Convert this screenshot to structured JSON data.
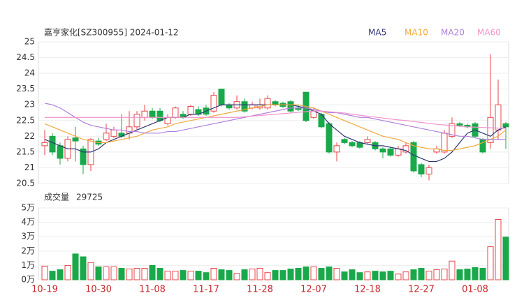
{
  "chart_data": [
    {
      "type": "candlestick",
      "title": "嘉亨家化[SZ300955] 2024-01-12",
      "categories": [
        "10-19",
        null,
        null,
        null,
        null,
        null,
        null,
        "10-30",
        null,
        null,
        null,
        null,
        null,
        null,
        "11-08",
        null,
        null,
        null,
        null,
        null,
        null,
        "11-17",
        null,
        null,
        null,
        null,
        null,
        null,
        "11-28",
        null,
        null,
        null,
        null,
        null,
        null,
        "12-07",
        null,
        null,
        null,
        null,
        null,
        null,
        "12-18",
        null,
        null,
        null,
        null,
        null,
        null,
        "12-27",
        null,
        null,
        null,
        null,
        null,
        null,
        "01-08",
        null,
        null,
        null,
        null
      ],
      "open": [
        21.7,
        22.0,
        21.7,
        21.3,
        21.95,
        21.6,
        21.1,
        21.85,
        21.9,
        22.0,
        22.1,
        22.1,
        22.3,
        22.6,
        22.8,
        22.8,
        22.4,
        22.6,
        22.7,
        22.7,
        22.85,
        22.9,
        22.8,
        23.5,
        23.0,
        22.9,
        23.1,
        22.9,
        22.9,
        22.9,
        23.1,
        23.05,
        23.1,
        22.9,
        23.4,
        22.6,
        22.7,
        22.4,
        21.5,
        21.9,
        21.8,
        21.8,
        21.8,
        21.8,
        21.6,
        21.6,
        21.4,
        21.5,
        21.8,
        21.1,
        20.8,
        21.5,
        21.5,
        22.0,
        22.4,
        22.35,
        22.4,
        21.9,
        21.8,
        22.2,
        22.4
      ],
      "high": [
        22.2,
        22.1,
        21.8,
        22.0,
        22.3,
        21.7,
        21.95,
        21.95,
        22.4,
        22.3,
        22.7,
        22.8,
        22.8,
        23.0,
        22.9,
        22.9,
        22.7,
        22.95,
        22.8,
        23.0,
        22.95,
        23.0,
        23.4,
        23.5,
        23.05,
        23.3,
        23.2,
        23.1,
        23.2,
        23.3,
        23.15,
        23.1,
        23.15,
        23.0,
        23.4,
        22.9,
        22.75,
        22.45,
        21.8,
        21.95,
        21.85,
        21.85,
        22.0,
        21.85,
        21.65,
        21.65,
        21.7,
        21.8,
        21.85,
        21.15,
        21.1,
        21.7,
        22.2,
        22.6,
        22.45,
        22.4,
        22.45,
        21.95,
        24.6,
        23.8,
        22.45
      ],
      "low": [
        21.4,
        21.4,
        21.1,
        21.2,
        21.2,
        20.8,
        20.9,
        21.7,
        21.85,
        21.95,
        21.95,
        21.9,
        22.2,
        22.5,
        22.55,
        22.45,
        22.35,
        22.55,
        22.55,
        22.65,
        22.65,
        22.65,
        22.75,
        22.95,
        22.85,
        22.85,
        22.75,
        22.85,
        22.85,
        22.85,
        22.95,
        22.9,
        22.75,
        22.8,
        22.45,
        22.55,
        22.25,
        21.45,
        21.2,
        21.75,
        21.65,
        21.6,
        21.75,
        21.55,
        21.3,
        21.35,
        21.35,
        21.45,
        20.85,
        20.7,
        20.6,
        21.45,
        21.45,
        21.95,
        22.3,
        22.25,
        21.95,
        21.45,
        21.6,
        21.9,
        21.6
      ],
      "close": [
        21.8,
        21.5,
        21.3,
        21.9,
        21.85,
        21.1,
        21.9,
        21.75,
        22.1,
        22.2,
        22.0,
        22.3,
        22.7,
        22.8,
        22.6,
        22.5,
        22.6,
        22.9,
        22.6,
        22.95,
        22.7,
        22.7,
        23.3,
        23.0,
        22.9,
        23.1,
        22.8,
        23.0,
        23.0,
        23.2,
        23.0,
        22.95,
        22.8,
        22.85,
        22.5,
        22.8,
        22.3,
        21.5,
        21.7,
        21.8,
        21.7,
        21.65,
        21.9,
        21.6,
        21.5,
        21.4,
        21.6,
        21.7,
        20.9,
        20.8,
        21.0,
        21.6,
        22.1,
        22.4,
        22.35,
        22.3,
        22.0,
        21.5,
        22.6,
        23.0,
        22.3
      ],
      "up_color": "#e8444a",
      "down_color": "#19a84a",
      "series": [
        {
          "name": "MA5",
          "color": "#2f3575",
          "values": [
            21.9,
            21.8,
            21.7,
            21.6,
            21.6,
            21.5,
            21.5,
            21.6,
            21.8,
            21.9,
            22.0,
            22.1,
            22.2,
            22.3,
            22.4,
            22.5,
            22.6,
            22.6,
            22.6,
            22.7,
            22.7,
            22.8,
            22.9,
            23.0,
            23.0,
            23.0,
            23.0,
            23.0,
            23.0,
            23.0,
            23.0,
            23.0,
            23.0,
            22.95,
            22.9,
            22.8,
            22.7,
            22.4,
            22.2,
            22.0,
            21.9,
            21.8,
            21.75,
            21.7,
            21.7,
            21.65,
            21.6,
            21.55,
            21.4,
            21.3,
            21.2,
            21.2,
            21.3,
            21.5,
            21.8,
            22.1,
            22.2,
            22.1,
            22.0,
            22.2,
            22.3
          ]
        },
        {
          "name": "MA10",
          "color": "#f2a93b",
          "values": [
            22.4,
            22.3,
            22.2,
            22.1,
            22.0,
            21.9,
            21.85,
            21.8,
            21.8,
            21.85,
            21.9,
            21.95,
            22.0,
            22.1,
            22.2,
            22.25,
            22.3,
            22.4,
            22.45,
            22.5,
            22.55,
            22.6,
            22.65,
            22.7,
            22.75,
            22.8,
            22.85,
            22.9,
            22.95,
            23.0,
            23.0,
            23.0,
            23.0,
            23.0,
            22.95,
            22.9,
            22.8,
            22.7,
            22.6,
            22.5,
            22.4,
            22.3,
            22.2,
            22.1,
            22.0,
            21.95,
            21.9,
            21.8,
            21.7,
            21.65,
            21.6,
            21.6,
            21.55,
            21.55,
            21.6,
            21.65,
            21.7,
            21.8,
            21.9,
            22.0,
            22.2
          ]
        },
        {
          "name": "MA20",
          "color": "#b07fdc",
          "values": [
            23.05,
            23.0,
            22.9,
            22.75,
            22.6,
            22.45,
            22.35,
            22.3,
            22.25,
            22.2,
            22.2,
            22.15,
            22.15,
            22.1,
            22.1,
            22.1,
            22.15,
            22.15,
            22.2,
            22.25,
            22.3,
            22.35,
            22.4,
            22.45,
            22.5,
            22.55,
            22.6,
            22.65,
            22.7,
            22.75,
            22.8,
            22.85,
            22.9,
            22.9,
            22.9,
            22.85,
            22.8,
            22.75,
            22.75,
            22.7,
            22.65,
            22.6,
            22.6,
            22.55,
            22.5,
            22.45,
            22.4,
            22.35,
            22.3,
            22.25,
            22.2,
            22.15,
            22.1,
            22.05,
            22.0,
            22.0,
            21.95,
            21.9,
            21.9,
            21.9,
            21.9
          ]
        },
        {
          "name": "MA60",
          "color": "#f293cc",
          "values": [
            22.6,
            22.6,
            22.6,
            22.6,
            22.6,
            22.6,
            22.6,
            22.6,
            22.6,
            22.6,
            22.6,
            22.6,
            22.6,
            22.6,
            22.6,
            22.6,
            22.6,
            22.6,
            22.6,
            22.6,
            22.6,
            22.6,
            22.6,
            22.6,
            22.6,
            22.6,
            22.62,
            22.64,
            22.66,
            22.68,
            22.7,
            22.72,
            22.74,
            22.76,
            22.78,
            22.8,
            22.8,
            22.78,
            22.76,
            22.74,
            22.7,
            22.67,
            22.64,
            22.61,
            22.58,
            22.55,
            22.52,
            22.5,
            22.47,
            22.44,
            22.41,
            22.38,
            22.36,
            22.34,
            22.32,
            22.3,
            22.29,
            22.28,
            22.27,
            22.26,
            22.25
          ]
        }
      ],
      "ylim": [
        20.5,
        25
      ],
      "yticks": [
        20.5,
        21,
        21.5,
        22,
        22.5,
        23,
        23.5,
        24,
        24.5,
        25
      ],
      "grid": true
    },
    {
      "type": "bar",
      "title": "成交量",
      "values": [
        9500,
        6000,
        7000,
        10000,
        18000,
        16000,
        12000,
        9000,
        9000,
        9000,
        8000,
        7500,
        8000,
        8000,
        10000,
        8000,
        6000,
        6000,
        6500,
        6000,
        6000,
        5000,
        8000,
        7000,
        6500,
        4500,
        7000,
        7500,
        8000,
        5000,
        6500,
        6500,
        7500,
        8000,
        9000,
        9000,
        8000,
        9000,
        8000,
        5500,
        7000,
        5000,
        5500,
        6000,
        5500,
        6000,
        4000,
        5500,
        7000,
        8000,
        6000,
        7000,
        7500,
        13000,
        7000,
        7500,
        8500,
        8000,
        23000,
        42000,
        29725
      ],
      "ylim": [
        0,
        50000
      ],
      "yticks": [
        {
          "value": 0,
          "label": "0万"
        },
        {
          "value": 10000,
          "label": "1万"
        },
        {
          "value": 20000,
          "label": "2万"
        },
        {
          "value": 30000,
          "label": "3万"
        },
        {
          "value": 40000,
          "label": "4万"
        },
        {
          "value": 50000,
          "label": "5万"
        }
      ],
      "grid": true
    }
  ]
}
